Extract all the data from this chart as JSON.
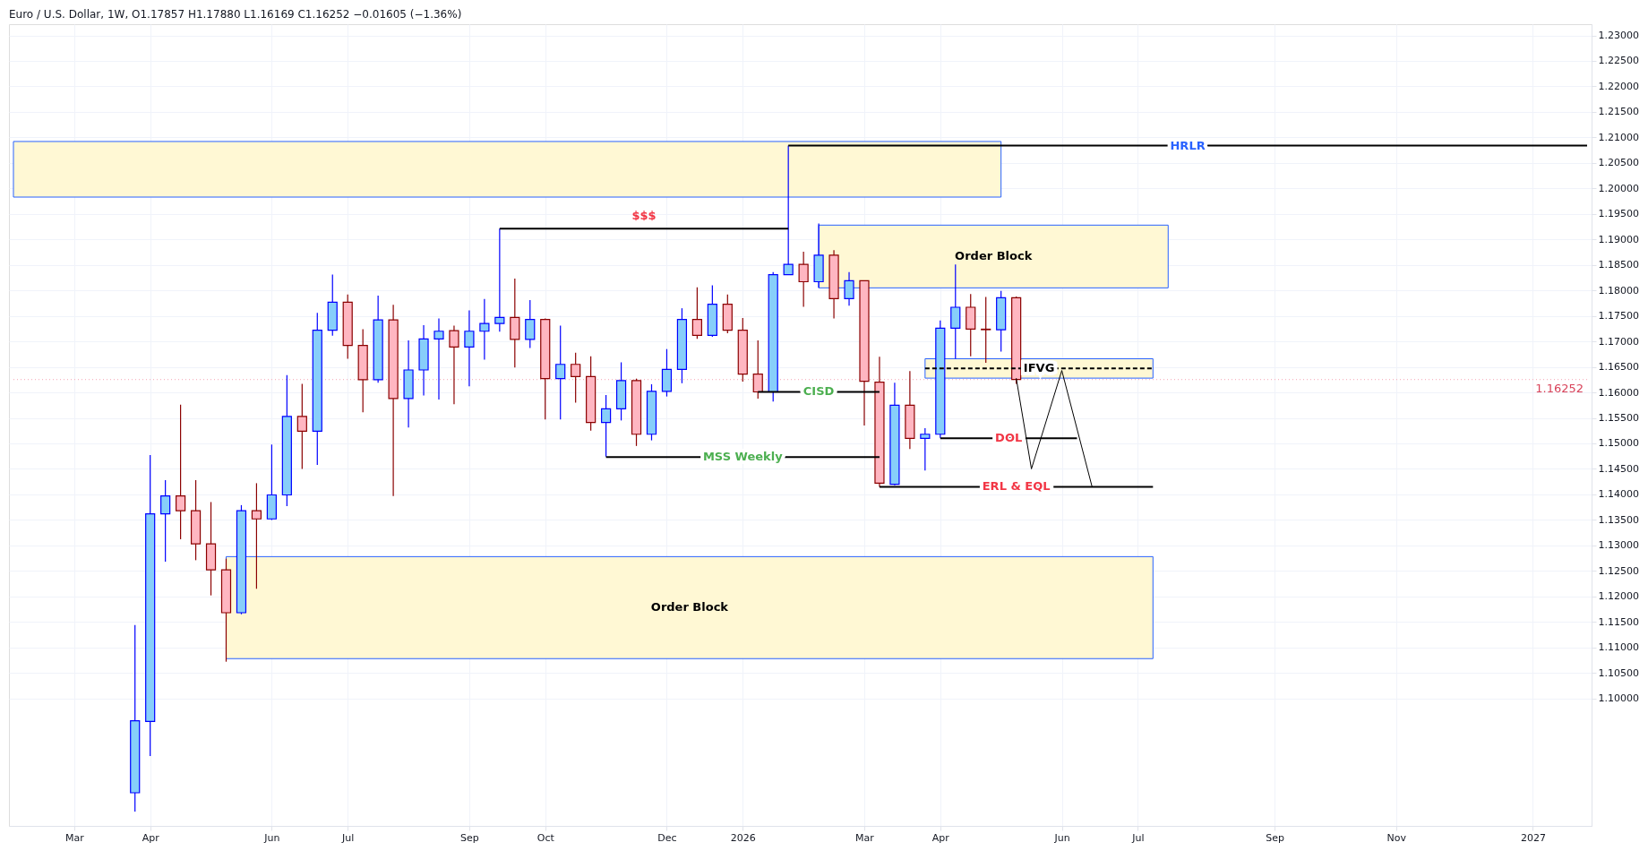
{
  "chart_data": {
    "type": "candlestick",
    "title": "Euro / U.S. Dollar, 1W, O1.17857 H1.17880 L1.16169 C1.16252 −0.01605 (−1.36%)",
    "x": [
      "2025-03-31",
      "2025-04-07",
      "2025-04-14",
      "2025-04-21",
      "2025-04-28",
      "2025-05-05",
      "2025-05-12",
      "2025-05-19",
      "2025-05-26",
      "2025-06-02",
      "2025-06-09",
      "2025-06-16",
      "2025-06-23",
      "2025-06-30",
      "2025-07-07",
      "2025-07-14",
      "2025-07-21",
      "2025-07-28",
      "2025-08-04",
      "2025-08-11",
      "2025-08-18",
      "2025-08-25",
      "2025-09-01",
      "2025-09-08",
      "2025-09-15",
      "2025-09-22",
      "2025-09-29",
      "2025-10-06",
      "2025-10-13",
      "2025-10-20",
      "2025-10-27",
      "2025-11-03",
      "2025-11-10",
      "2025-11-17",
      "2025-11-24",
      "2025-12-01",
      "2025-12-08",
      "2025-12-15",
      "2025-12-22",
      "2025-12-29",
      "2026-01-05",
      "2026-01-12",
      "2026-01-19",
      "2026-01-26",
      "2026-02-02",
      "2026-02-09",
      "2026-02-16",
      "2026-02-23",
      "2026-03-02",
      "2026-03-09",
      "2026-03-16",
      "2026-03-23",
      "2026-03-30",
      "2026-04-06",
      "2026-04-13",
      "2026-04-20",
      "2026-04-27",
      "2026-05-04",
      "2026-05-11"
    ],
    "ohlc": [
      [
        1.0815,
        1.1144,
        1.0778,
        1.0956
      ],
      [
        1.0955,
        1.1477,
        1.0887,
        1.1362
      ],
      [
        1.1362,
        1.1428,
        1.1268,
        1.1397
      ],
      [
        1.1397,
        1.1576,
        1.1312,
        1.1368
      ],
      [
        1.1368,
        1.1428,
        1.1271,
        1.1303
      ],
      [
        1.1303,
        1.1385,
        1.1202,
        1.1252
      ],
      [
        1.1252,
        1.1274,
        1.1072,
        1.1168
      ],
      [
        1.1168,
        1.1379,
        1.1165,
        1.1368
      ],
      [
        1.1368,
        1.1422,
        1.1215,
        1.1352
      ],
      [
        1.1352,
        1.1498,
        1.135,
        1.1399
      ],
      [
        1.1399,
        1.1634,
        1.1377,
        1.1553
      ],
      [
        1.1553,
        1.1617,
        1.145,
        1.1524
      ],
      [
        1.1524,
        1.1756,
        1.1458,
        1.1722
      ],
      [
        1.1722,
        1.1831,
        1.1711,
        1.1777
      ],
      [
        1.1777,
        1.1792,
        1.1666,
        1.1692
      ],
      [
        1.1692,
        1.1724,
        1.1561,
        1.1625
      ],
      [
        1.1625,
        1.179,
        1.1619,
        1.1742
      ],
      [
        1.1742,
        1.1772,
        1.1397,
        1.1588
      ],
      [
        1.1588,
        1.1702,
        1.1531,
        1.1644
      ],
      [
        1.1644,
        1.1732,
        1.1594,
        1.1705
      ],
      [
        1.1705,
        1.1745,
        1.1586,
        1.172
      ],
      [
        1.1721,
        1.1731,
        1.1577,
        1.1689
      ],
      [
        1.1689,
        1.1761,
        1.1612,
        1.172
      ],
      [
        1.172,
        1.1783,
        1.1664,
        1.1735
      ],
      [
        1.1735,
        1.1921,
        1.1719,
        1.1747
      ],
      [
        1.1747,
        1.1823,
        1.1649,
        1.1704
      ],
      [
        1.1704,
        1.1781,
        1.1687,
        1.1743
      ],
      [
        1.1743,
        1.1745,
        1.1547,
        1.1627
      ],
      [
        1.1627,
        1.1731,
        1.1547,
        1.1655
      ],
      [
        1.1655,
        1.1678,
        1.158,
        1.1631
      ],
      [
        1.1631,
        1.1671,
        1.1525,
        1.1541
      ],
      [
        1.1541,
        1.1595,
        1.1474,
        1.1568
      ],
      [
        1.1568,
        1.1659,
        1.1545,
        1.1623
      ],
      [
        1.1623,
        1.1627,
        1.1495,
        1.1518
      ],
      [
        1.1518,
        1.1616,
        1.1506,
        1.1602
      ],
      [
        1.1602,
        1.1685,
        1.1592,
        1.1645
      ],
      [
        1.1645,
        1.1765,
        1.1618,
        1.1743
      ],
      [
        1.1743,
        1.1806,
        1.1705,
        1.1712
      ],
      [
        1.1712,
        1.181,
        1.1709,
        1.1773
      ],
      [
        1.1773,
        1.1792,
        1.1716,
        1.1722
      ],
      [
        1.1722,
        1.1746,
        1.1621,
        1.1636
      ],
      [
        1.1636,
        1.1702,
        1.1588,
        1.1601
      ],
      [
        1.1601,
        1.1836,
        1.1582,
        1.1831
      ],
      [
        1.1831,
        1.2084,
        1.1831,
        1.1851
      ],
      [
        1.1851,
        1.1876,
        1.1768,
        1.1817
      ],
      [
        1.1817,
        1.1931,
        1.1805,
        1.1869
      ],
      [
        1.1869,
        1.1879,
        1.1745,
        1.1784
      ],
      [
        1.1784,
        1.1836,
        1.177,
        1.1819
      ],
      [
        1.1819,
        1.1819,
        1.1535,
        1.1622
      ],
      [
        1.162,
        1.167,
        1.1415,
        1.1422
      ],
      [
        1.142,
        1.1619,
        1.1418,
        1.1575
      ],
      [
        1.1575,
        1.1642,
        1.1489,
        1.151
      ],
      [
        1.151,
        1.153,
        1.1447,
        1.1518
      ],
      [
        1.1518,
        1.1741,
        1.1511,
        1.1726
      ],
      [
        1.1726,
        1.1851,
        1.1666,
        1.1767
      ],
      [
        1.1767,
        1.1793,
        1.1671,
        1.1724
      ],
      [
        1.1724,
        1.1787,
        1.1658,
        1.1723
      ],
      [
        1.1723,
        1.1799,
        1.168,
        1.17857
      ],
      [
        1.17857,
        1.1788,
        1.16169,
        1.16252
      ]
    ],
    "colors": [
      "#87cefa",
      "#87cefa",
      "#87cefa",
      "#ffb6c1",
      "#ffb6c1",
      "#ffb6c1",
      "#ffb6c1",
      "#87cefa",
      "#ffb6c1",
      "#87cefa",
      "#87cefa",
      "#ffb6c1",
      "#87cefa",
      "#87cefa",
      "#ffb6c1",
      "#ffb6c1",
      "#87cefa",
      "#ffb6c1",
      "#87cefa",
      "#87cefa",
      "#87cefa",
      "#ffb6c1",
      "#87cefa",
      "#87cefa",
      "#87cefa",
      "#ffb6c1",
      "#87cefa",
      "#ffb6c1",
      "#87cefa",
      "#ffb6c1",
      "#ffb6c1",
      "#87cefa",
      "#87cefa",
      "#ffb6c1",
      "#87cefa",
      "#87cefa",
      "#87cefa",
      "#ffb6c1",
      "#87cefa",
      "#ffb6c1",
      "#ffb6c1",
      "#ffb6c1",
      "#87cefa",
      "#87cefa",
      "#ffb6c1",
      "#87cefa",
      "#ffb6c1",
      "#87cefa",
      "#ffb6c1",
      "#ffb6c1",
      "#87cefa",
      "#ffb6c1",
      "#87cefa",
      "#87cefa",
      "#87cefa",
      "#ffb6c1",
      "#ffb6c1",
      "#87cefa",
      "#ffb6c1"
    ],
    "series": [
      {
        "type": "line",
        "color": "#000000",
        "x": [
          "2026-05-11",
          "2026-05-18",
          "2026-06-01",
          "2026-06-15"
        ],
        "values": [
          1.1628,
          1.145,
          1.1643,
          1.1414
        ]
      },
      {
        "type": "line",
        "name": "HRLR",
        "color": "#000000",
        "x": [
          "2026-01-26",
          "2027-01-29"
        ],
        "values": [
          1.2084,
          1.2084
        ]
      },
      {
        "type": "line",
        "name": "$$$",
        "color": "#000000",
        "x": [
          "2025-09-15",
          "2026-01-26"
        ],
        "values": [
          1.1921,
          1.1921
        ]
      },
      {
        "type": "line",
        "name": "CISD",
        "color": "#000000",
        "x": [
          "2026-01-12",
          "2026-03-09"
        ],
        "values": [
          1.1601,
          1.1601
        ]
      },
      {
        "type": "line",
        "name": "MSS Weekly",
        "color": "#000000",
        "x": [
          "2025-11-03",
          "2026-03-09"
        ],
        "values": [
          1.1473,
          1.1473
        ]
      },
      {
        "type": "line",
        "name": "DOL",
        "color": "#000000",
        "x": [
          "2026-04-06",
          "2026-06-08"
        ],
        "values": [
          1.151,
          1.151
        ]
      },
      {
        "type": "line",
        "name": "ERL & EQL",
        "color": "#000000",
        "x": [
          "2026-03-09",
          "2026-07-13"
        ],
        "values": [
          1.1415,
          1.1415
        ]
      },
      {
        "type": "line",
        "name": "IFVG",
        "color": "#000000",
        "line_style": "dashed",
        "x": [
          "2026-03-30",
          "2026-07-13"
        ],
        "values": [
          1.1647,
          1.1647
        ],
        "lower": [
          1.1628,
          1.1628
        ],
        "upper": [
          1.1666,
          1.1666
        ]
      },
      {
        "type": "line",
        "x": [
          "2025-02-03",
          "2026-05-04"
        ],
        "values": [
          null,
          null
        ],
        "lower": [
          1.1983,
          1.1983
        ],
        "upper": [
          1.2092,
          1.2092
        ]
      },
      {
        "type": "line",
        "name": "Order Block",
        "x": [
          "2026-02-09",
          "2026-07-20"
        ],
        "values": [
          null,
          null
        ],
        "lower": [
          1.1805,
          1.1805
        ],
        "upper": [
          1.1928,
          1.1928
        ]
      },
      {
        "type": "line",
        "name": "Order Block",
        "x": [
          "2025-05-12",
          "2026-07-13"
        ],
        "values": [
          null,
          null
        ],
        "lower": [
          1.1078,
          1.1078
        ],
        "upper": [
          1.1278,
          1.1278
        ]
      }
    ],
    "xlim": [
      "2025-02-03",
      "2027-01-29"
    ],
    "xticks": [
      {
        "value": "2025-03-03",
        "label": "Mar"
      },
      {
        "value": "2025-04-07",
        "label": "Apr"
      },
      {
        "value": "2025-06-02",
        "label": "Jun"
      },
      {
        "value": "2025-07-07",
        "label": "Jul"
      },
      {
        "value": "2025-09-01",
        "label": "Sep"
      },
      {
        "value": "2025-10-06",
        "label": "Oct"
      },
      {
        "value": "2025-12-01",
        "label": "Dec"
      },
      {
        "value": "2026-01-05",
        "label": "2026"
      },
      {
        "value": "2026-03-02",
        "label": "Mar"
      },
      {
        "value": "2026-04-06",
        "label": "Apr"
      },
      {
        "value": "2026-06-01",
        "label": "Jun"
      },
      {
        "value": "2026-07-06",
        "label": "Jul"
      },
      {
        "value": "2026-09-07",
        "label": "Sep"
      },
      {
        "value": "2026-11-02",
        "label": "Nov"
      },
      {
        "value": "2027-01-04",
        "label": "2027"
      }
    ],
    "ylim": [
      1.075,
      1.2322
    ],
    "yticks": [
      {
        "value": 1.1,
        "label": "1.10000"
      },
      {
        "value": 1.105,
        "label": "1.10500"
      },
      {
        "value": 1.11,
        "label": "1.11000"
      },
      {
        "value": 1.115,
        "label": "1.11500"
      },
      {
        "value": 1.12,
        "label": "1.12000"
      },
      {
        "value": 1.125,
        "label": "1.12500"
      },
      {
        "value": 1.13,
        "label": "1.13000"
      },
      {
        "value": 1.135,
        "label": "1.13500"
      },
      {
        "value": 1.14,
        "label": "1.14000"
      },
      {
        "value": 1.145,
        "label": "1.14500"
      },
      {
        "value": 1.15,
        "label": "1.15000"
      },
      {
        "value": 1.155,
        "label": "1.15500"
      },
      {
        "value": 1.16,
        "label": "1.16000"
      },
      {
        "value": 1.165,
        "label": "1.16500"
      },
      {
        "value": 1.17,
        "label": "1.17000"
      },
      {
        "value": 1.175,
        "label": "1.17500"
      },
      {
        "value": 1.18,
        "label": "1.18000"
      },
      {
        "value": 1.185,
        "label": "1.18500"
      },
      {
        "value": 1.19,
        "label": "1.19000"
      },
      {
        "value": 1.195,
        "label": "1.19500"
      },
      {
        "value": 1.2,
        "label": "1.20000"
      },
      {
        "value": 1.205,
        "label": "1.20500"
      },
      {
        "value": 1.21,
        "label": "1.21000"
      },
      {
        "value": 1.215,
        "label": "1.21500"
      },
      {
        "value": 1.22,
        "label": "1.22000"
      },
      {
        "value": 1.225,
        "label": "1.22500"
      },
      {
        "value": 1.23,
        "label": "1.23000"
      }
    ],
    "grid": true,
    "ref_lines": [
      {
        "axis": "y",
        "value": 1.16252,
        "label": "1.16252",
        "color": "#f5a3b3",
        "line_style": "dotted"
      }
    ]
  }
}
